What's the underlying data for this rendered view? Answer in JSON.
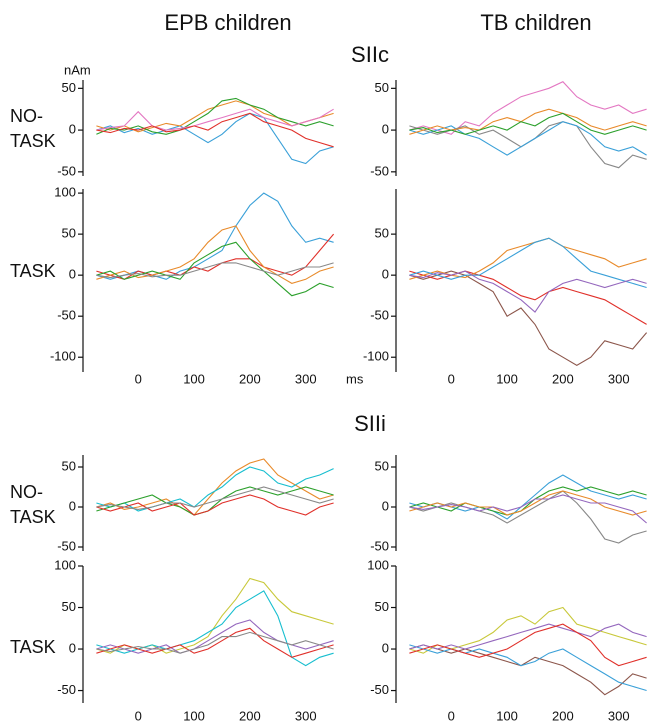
{
  "labels": {
    "columns": [
      "EPB children",
      "TB children"
    ],
    "sections": [
      "SIIc",
      "SIIi"
    ],
    "rows": [
      [
        "NO-",
        "TASK"
      ],
      [
        "TASK"
      ],
      [
        "NO-",
        "TASK"
      ],
      [
        "TASK"
      ]
    ],
    "y_unit": "nAm",
    "x_unit": "ms"
  },
  "chart_data": [
    {
      "type": "line",
      "x": [
        -75,
        -50,
        -25,
        0,
        25,
        50,
        75,
        100,
        125,
        150,
        175,
        200,
        225,
        250,
        275,
        300,
        325,
        350
      ],
      "xlim": [
        -90,
        365
      ],
      "ylim": [
        -55,
        60
      ],
      "yticks": [
        50,
        0,
        -50
      ],
      "series": [
        {
          "color": "#3aa0d8",
          "values": [
            0,
            5,
            -3,
            2,
            -5,
            0,
            5,
            -5,
            -15,
            -5,
            10,
            20,
            15,
            -10,
            -35,
            -40,
            -25,
            -20
          ]
        },
        {
          "color": "#e88a2a",
          "values": [
            5,
            0,
            5,
            -2,
            3,
            8,
            5,
            15,
            25,
            30,
            35,
            30,
            20,
            15,
            5,
            10,
            15,
            20
          ]
        },
        {
          "color": "#2ca02c",
          "values": [
            -5,
            2,
            0,
            5,
            -2,
            -5,
            0,
            10,
            20,
            35,
            38,
            30,
            25,
            15,
            10,
            5,
            10,
            5
          ]
        },
        {
          "color": "#e377c2",
          "values": [
            0,
            3,
            5,
            22,
            5,
            0,
            2,
            5,
            10,
            15,
            20,
            25,
            15,
            10,
            5,
            10,
            15,
            25
          ]
        },
        {
          "color": "#e0302a",
          "values": [
            0,
            -3,
            2,
            0,
            5,
            -2,
            0,
            5,
            0,
            10,
            15,
            20,
            10,
            5,
            0,
            -10,
            -15,
            -20
          ]
        }
      ]
    },
    {
      "type": "line",
      "x": [
        -75,
        -50,
        -25,
        0,
        25,
        50,
        75,
        100,
        125,
        150,
        175,
        200,
        225,
        250,
        275,
        300,
        325,
        350
      ],
      "xlim": [
        -90,
        365
      ],
      "ylim": [
        -55,
        60
      ],
      "yticks": [
        50,
        0,
        -50
      ],
      "series": [
        {
          "color": "#e377c2",
          "values": [
            0,
            5,
            0,
            -5,
            10,
            5,
            20,
            30,
            40,
            45,
            50,
            58,
            40,
            30,
            25,
            30,
            20,
            25
          ]
        },
        {
          "color": "#888888",
          "values": [
            5,
            0,
            -5,
            0,
            5,
            -5,
            0,
            -10,
            -20,
            -10,
            5,
            10,
            5,
            -20,
            -40,
            -45,
            -30,
            -35
          ]
        },
        {
          "color": "#3aa0d8",
          "values": [
            0,
            -5,
            0,
            5,
            -5,
            -10,
            -20,
            -30,
            -20,
            -10,
            0,
            10,
            5,
            -5,
            -20,
            -25,
            -20,
            -30
          ]
        },
        {
          "color": "#e88a2a",
          "values": [
            -5,
            0,
            5,
            0,
            3,
            0,
            10,
            15,
            10,
            20,
            25,
            20,
            15,
            5,
            0,
            5,
            10,
            5
          ]
        },
        {
          "color": "#2ca02c",
          "values": [
            0,
            3,
            -3,
            0,
            -5,
            0,
            5,
            0,
            10,
            5,
            15,
            20,
            10,
            0,
            -5,
            0,
            5,
            0
          ]
        }
      ]
    },
    {
      "type": "line",
      "x": [
        -75,
        -50,
        -25,
        0,
        25,
        50,
        75,
        100,
        125,
        150,
        175,
        200,
        225,
        250,
        275,
        300,
        325,
        350
      ],
      "xlim": [
        -90,
        365
      ],
      "ylim": [
        -118,
        105
      ],
      "yticks": [
        100,
        50,
        0,
        -50,
        -100
      ],
      "xticks": [
        0,
        100,
        200,
        300
      ],
      "series": [
        {
          "color": "#3aa0d8",
          "values": [
            0,
            -5,
            0,
            5,
            0,
            -5,
            5,
            10,
            20,
            30,
            60,
            85,
            100,
            90,
            60,
            40,
            45,
            40
          ]
        },
        {
          "color": "#e0302a",
          "values": [
            5,
            0,
            -5,
            5,
            0,
            5,
            0,
            10,
            5,
            15,
            20,
            20,
            10,
            5,
            0,
            10,
            30,
            50
          ]
        },
        {
          "color": "#e88a2a",
          "values": [
            -5,
            0,
            5,
            -3,
            0,
            5,
            10,
            20,
            40,
            55,
            60,
            30,
            10,
            0,
            -10,
            -5,
            5,
            10
          ]
        },
        {
          "color": "#2ca02c",
          "values": [
            0,
            5,
            -5,
            0,
            5,
            0,
            -5,
            15,
            25,
            35,
            40,
            20,
            5,
            -10,
            -25,
            -20,
            -10,
            -15
          ]
        },
        {
          "color": "#888888",
          "values": [
            0,
            -3,
            0,
            2,
            -2,
            0,
            0,
            5,
            10,
            15,
            15,
            10,
            5,
            0,
            5,
            10,
            10,
            15
          ]
        }
      ]
    },
    {
      "type": "line",
      "x": [
        -75,
        -50,
        -25,
        0,
        25,
        50,
        75,
        100,
        125,
        150,
        175,
        200,
        225,
        250,
        275,
        300,
        325,
        350
      ],
      "xlim": [
        -90,
        365
      ],
      "ylim": [
        -118,
        105
      ],
      "yticks": [
        50,
        0,
        -50,
        -100
      ],
      "xticks": [
        0,
        100,
        200,
        300
      ],
      "series": [
        {
          "color": "#8c564b",
          "values": [
            0,
            -5,
            0,
            5,
            0,
            -10,
            -20,
            -50,
            -40,
            -60,
            -90,
            -100,
            -110,
            -100,
            -80,
            -85,
            -90,
            -70
          ]
        },
        {
          "color": "#e0302a",
          "values": [
            5,
            0,
            -5,
            0,
            5,
            0,
            -5,
            -15,
            -25,
            -30,
            -20,
            -15,
            -20,
            -25,
            -30,
            -40,
            -50,
            -60
          ]
        },
        {
          "color": "#e88a2a",
          "values": [
            -5,
            0,
            5,
            0,
            -3,
            5,
            15,
            30,
            35,
            40,
            45,
            35,
            30,
            25,
            20,
            10,
            15,
            20
          ]
        },
        {
          "color": "#3aa0d8",
          "values": [
            0,
            5,
            0,
            -5,
            0,
            0,
            10,
            20,
            30,
            40,
            45,
            35,
            20,
            5,
            0,
            -5,
            -10,
            -15
          ]
        },
        {
          "color": "#9467bd",
          "values": [
            0,
            -3,
            3,
            0,
            5,
            -5,
            -10,
            -20,
            -30,
            -45,
            -20,
            -10,
            -5,
            -10,
            -15,
            -10,
            -5,
            -10
          ]
        }
      ]
    },
    {
      "type": "line",
      "x": [
        -75,
        -50,
        -25,
        0,
        25,
        50,
        75,
        100,
        125,
        150,
        175,
        200,
        225,
        250,
        275,
        300,
        325,
        350
      ],
      "xlim": [
        -90,
        365
      ],
      "ylim": [
        -55,
        65
      ],
      "yticks": [
        50,
        0,
        -50
      ],
      "series": [
        {
          "color": "#e88a2a",
          "values": [
            0,
            5,
            -3,
            0,
            5,
            10,
            0,
            -10,
            10,
            30,
            45,
            55,
            60,
            40,
            30,
            20,
            10,
            15
          ]
        },
        {
          "color": "#17becf",
          "values": [
            5,
            0,
            5,
            -5,
            0,
            5,
            10,
            0,
            15,
            25,
            40,
            50,
            45,
            30,
            25,
            35,
            40,
            48
          ]
        },
        {
          "color": "#2ca02c",
          "values": [
            -5,
            0,
            5,
            10,
            15,
            5,
            0,
            -10,
            -5,
            10,
            20,
            25,
            20,
            15,
            20,
            25,
            20,
            15
          ]
        },
        {
          "color": "#e0302a",
          "values": [
            0,
            -5,
            0,
            5,
            -5,
            0,
            5,
            -10,
            -5,
            5,
            10,
            15,
            10,
            0,
            -5,
            -10,
            0,
            5
          ]
        },
        {
          "color": "#888888",
          "values": [
            0,
            3,
            0,
            -3,
            0,
            5,
            5,
            0,
            5,
            10,
            15,
            20,
            25,
            20,
            15,
            10,
            5,
            10
          ]
        }
      ]
    },
    {
      "type": "line",
      "x": [
        -75,
        -50,
        -25,
        0,
        25,
        50,
        75,
        100,
        125,
        150,
        175,
        200,
        225,
        250,
        275,
        300,
        325,
        350
      ],
      "xlim": [
        -90,
        365
      ],
      "ylim": [
        -55,
        65
      ],
      "yticks": [
        50,
        0,
        -50
      ],
      "series": [
        {
          "color": "#888888",
          "values": [
            0,
            -5,
            0,
            5,
            0,
            -5,
            -10,
            -20,
            -10,
            0,
            10,
            20,
            5,
            -15,
            -40,
            -45,
            -35,
            -30
          ]
        },
        {
          "color": "#3aa0d8",
          "values": [
            5,
            0,
            5,
            0,
            -5,
            0,
            -5,
            -15,
            0,
            15,
            30,
            40,
            30,
            20,
            15,
            10,
            15,
            10
          ]
        },
        {
          "color": "#2ca02c",
          "values": [
            0,
            5,
            0,
            -5,
            5,
            0,
            -5,
            -10,
            -5,
            10,
            20,
            25,
            20,
            25,
            20,
            15,
            20,
            15
          ]
        },
        {
          "color": "#e88a2a",
          "values": [
            -5,
            0,
            5,
            0,
            5,
            0,
            0,
            -10,
            -5,
            5,
            15,
            20,
            15,
            10,
            0,
            -5,
            -10,
            -5
          ]
        },
        {
          "color": "#9467bd",
          "values": [
            0,
            -3,
            0,
            3,
            0,
            -5,
            0,
            -5,
            0,
            10,
            10,
            15,
            10,
            5,
            5,
            0,
            -5,
            -20
          ]
        }
      ]
    },
    {
      "type": "line",
      "x": [
        -75,
        -50,
        -25,
        0,
        25,
        50,
        75,
        100,
        125,
        150,
        175,
        200,
        225,
        250,
        275,
        300,
        325,
        350
      ],
      "xlim": [
        -90,
        365
      ],
      "ylim": [
        -65,
        100
      ],
      "yticks": [
        100,
        50,
        0,
        -50
      ],
      "xticks": [
        0,
        100,
        200,
        300
      ],
      "series": [
        {
          "color": "#c8c83a",
          "values": [
            0,
            -5,
            5,
            0,
            5,
            -5,
            0,
            5,
            15,
            40,
            60,
            85,
            80,
            60,
            45,
            40,
            35,
            30
          ]
        },
        {
          "color": "#17becf",
          "values": [
            5,
            0,
            -5,
            0,
            5,
            0,
            5,
            10,
            20,
            30,
            50,
            60,
            70,
            40,
            -10,
            -20,
            -10,
            -5
          ]
        },
        {
          "color": "#9467bd",
          "values": [
            0,
            5,
            0,
            -5,
            0,
            5,
            -5,
            0,
            10,
            20,
            30,
            35,
            20,
            10,
            5,
            0,
            5,
            10
          ]
        },
        {
          "color": "#e0302a",
          "values": [
            -5,
            0,
            5,
            0,
            -5,
            0,
            5,
            -5,
            0,
            10,
            20,
            25,
            10,
            0,
            -10,
            -5,
            0,
            5
          ]
        },
        {
          "color": "#888888",
          "values": [
            0,
            -3,
            0,
            3,
            0,
            0,
            -5,
            0,
            5,
            15,
            15,
            20,
            15,
            10,
            5,
            10,
            5,
            0
          ]
        }
      ]
    },
    {
      "type": "line",
      "x": [
        -75,
        -50,
        -25,
        0,
        25,
        50,
        75,
        100,
        125,
        150,
        175,
        200,
        225,
        250,
        275,
        300,
        325,
        350
      ],
      "xlim": [
        -90,
        365
      ],
      "ylim": [
        -65,
        100
      ],
      "yticks": [
        100,
        50,
        0,
        -50
      ],
      "xticks": [
        0,
        100,
        200,
        300
      ],
      "series": [
        {
          "color": "#8c564b",
          "values": [
            0,
            5,
            0,
            -5,
            0,
            -5,
            -10,
            -15,
            -20,
            -10,
            -15,
            -20,
            -30,
            -40,
            -55,
            -45,
            -30,
            -35
          ]
        },
        {
          "color": "#c8c83a",
          "values": [
            0,
            -5,
            5,
            0,
            5,
            10,
            20,
            35,
            40,
            30,
            45,
            50,
            30,
            25,
            20,
            15,
            10,
            5
          ]
        },
        {
          "color": "#3aa0d8",
          "values": [
            5,
            0,
            -5,
            0,
            -5,
            0,
            -5,
            -10,
            -20,
            -15,
            -5,
            0,
            -10,
            -20,
            -30,
            -40,
            -45,
            -50
          ]
        },
        {
          "color": "#9467bd",
          "values": [
            0,
            5,
            0,
            5,
            0,
            5,
            10,
            15,
            20,
            25,
            30,
            25,
            20,
            15,
            25,
            30,
            20,
            15
          ]
        },
        {
          "color": "#e0302a",
          "values": [
            -5,
            0,
            5,
            0,
            -5,
            -10,
            -5,
            0,
            10,
            20,
            25,
            30,
            20,
            10,
            -10,
            -20,
            -15,
            -10
          ]
        }
      ]
    }
  ]
}
